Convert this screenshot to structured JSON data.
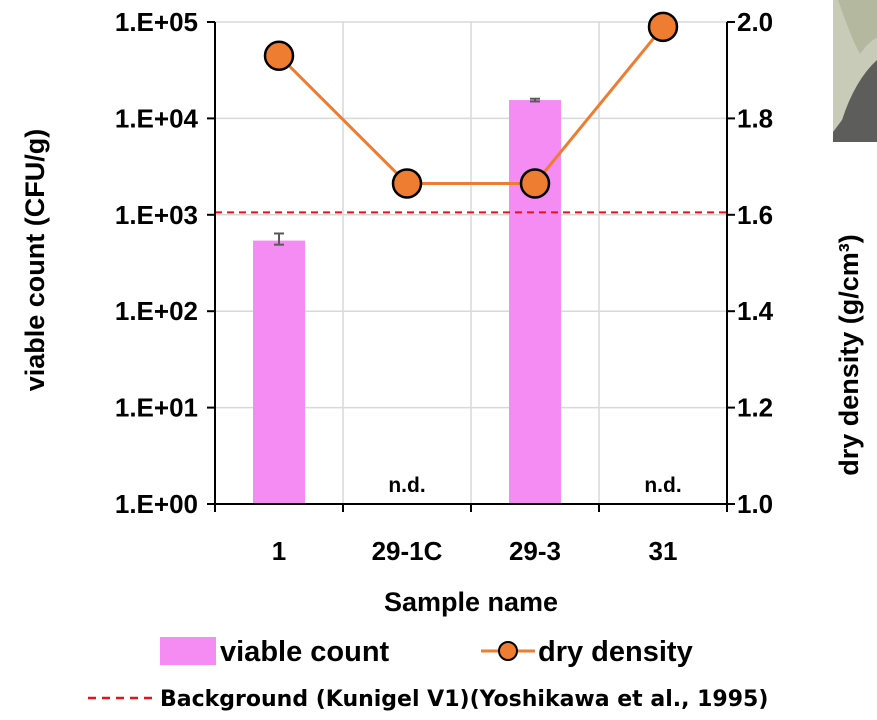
{
  "chart_data": {
    "type": "bar",
    "categories": [
      "1",
      "29-1C",
      "29-3",
      "31"
    ],
    "xlabel": "Sample name",
    "ylabel_left": "viable count (CFU/g)",
    "ylabel_right": "dry density (g/cm³)",
    "y_left_scale": "log",
    "y_left_range": [
      1,
      100000
    ],
    "y_left_ticks": [
      "1.E+00",
      "1.E+01",
      "1.E+02",
      "1.E+03",
      "1.E+04",
      "1.E+05"
    ],
    "y_right_range": [
      1.0,
      2.0
    ],
    "y_right_ticks": [
      "1.0",
      "1.2",
      "1.4",
      "1.6",
      "1.8",
      "2.0"
    ],
    "grid": true,
    "series": [
      {
        "name": "viable count",
        "type": "bar",
        "axis": "left",
        "color": "#f48cf4",
        "values": [
          540,
          null,
          15500,
          null
        ],
        "error_low": [
          490,
          null,
          15000,
          null
        ],
        "error_high": [
          640,
          null,
          16000,
          null
        ],
        "labels": [
          "",
          "n.d.",
          "",
          "n.d."
        ]
      },
      {
        "name": "dry density",
        "type": "line",
        "axis": "right",
        "color": "#ee7d31",
        "marker_fill": "#ee7d31",
        "values": [
          1.93,
          1.665,
          1.665,
          1.99
        ],
        "error_high": [
          null,
          null,
          null,
          1.97
        ]
      }
    ],
    "reference_line": {
      "label": "Background (Kunigel V1)(Yoshikawa et al., 1995)",
      "axis": "right",
      "value": 1.605,
      "color": "#e8121a",
      "style": "dashed"
    },
    "legend": {
      "placement": "bottom",
      "entries": [
        "viable count",
        "dry density"
      ]
    }
  },
  "colors": {
    "bar": "#f48cf4",
    "line": "#ee7d31",
    "reference": "#e8121a",
    "grid": "#d9d9d9",
    "error_bar": "#595959"
  }
}
